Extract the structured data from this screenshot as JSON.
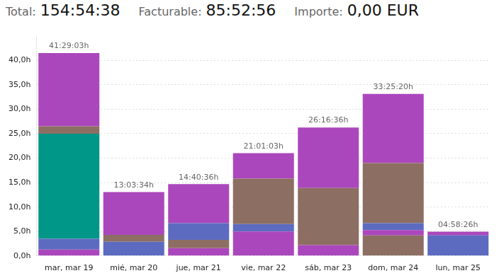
{
  "header": {
    "items": [
      {
        "label": "Total:",
        "value": "154:54:38"
      },
      {
        "label": "Facturable:",
        "value": "85:52:56"
      },
      {
        "label": "Importe:",
        "value": "0,00 EUR"
      }
    ]
  },
  "chart_data": {
    "type": "bar",
    "stacked": true,
    "grid": true,
    "categories": [
      "mar, mar 19",
      "mié, mar 20",
      "jue, mar 21",
      "vie, mar 22",
      "sáb, mar 23",
      "dom, mar 24",
      "lun, mar 25"
    ],
    "series": [
      {
        "color": "#ab47bc",
        "values": [
          1.3,
          0,
          1.6,
          5.0,
          2.2,
          0,
          0
        ]
      },
      {
        "color": "#8d6e63",
        "values": [
          0,
          0,
          1.7,
          0,
          0,
          4.2,
          0
        ]
      },
      {
        "color": "#ab47bc",
        "values": [
          0,
          0,
          0,
          0,
          0,
          1.1,
          0
        ]
      },
      {
        "color": "#5c6bc0",
        "values": [
          2.2,
          2.9,
          3.4,
          1.5,
          0,
          1.4,
          4.2
        ]
      },
      {
        "color": "#009688",
        "values": [
          21.5,
          0,
          0,
          0,
          0,
          0,
          0
        ]
      },
      {
        "color": "#8d6e63",
        "values": [
          1.5,
          1.4,
          0,
          9.3,
          11.7,
          12.3,
          0
        ]
      },
      {
        "color": "#ab47bc",
        "values": [
          14.98,
          8.76,
          7.98,
          5.22,
          12.37,
          14.12,
          0.77
        ]
      }
    ],
    "total_labels": [
      "41:29:03h",
      "13:03:34h",
      "14:40:36h",
      "21:01:03h",
      "26:16:36h",
      "33:25:20h",
      "04:58:26h"
    ],
    "ylim": [
      0,
      45
    ],
    "yticks": [
      {
        "value": 0,
        "label": "0,0h"
      },
      {
        "value": 5,
        "label": "5,0h"
      },
      {
        "value": 10,
        "label": "10,0h"
      },
      {
        "value": 15,
        "label": "15,0h"
      },
      {
        "value": 20,
        "label": "20,0h"
      },
      {
        "value": 25,
        "label": "25,0h"
      },
      {
        "value": 30,
        "label": "30,0h"
      },
      {
        "value": 35,
        "label": "35,0h"
      },
      {
        "value": 40,
        "label": "40,0h"
      }
    ]
  }
}
